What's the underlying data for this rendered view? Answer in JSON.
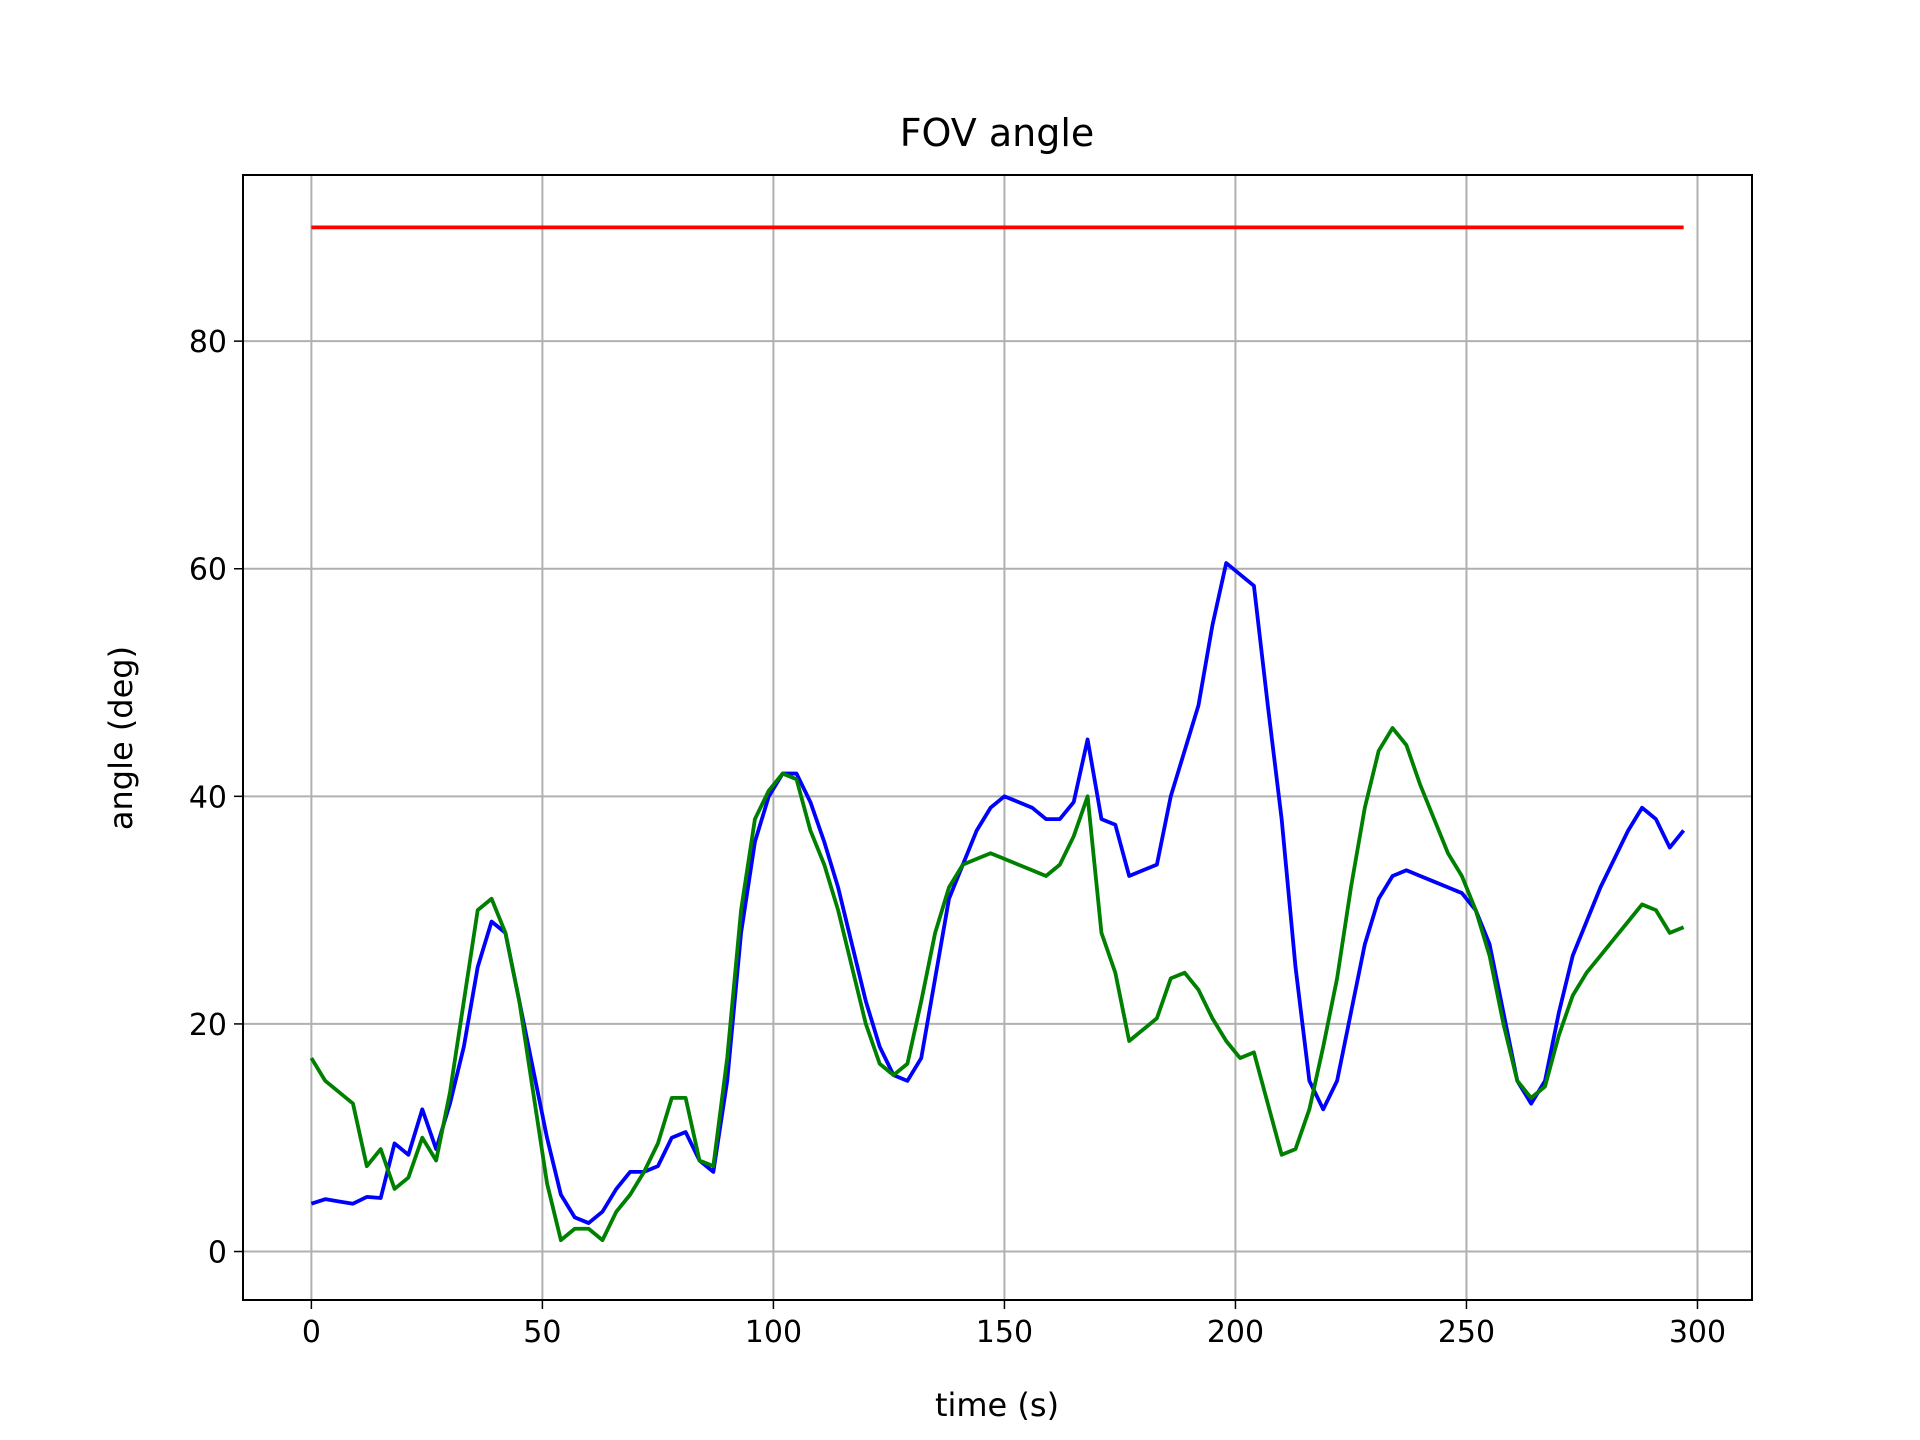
{
  "chart_data": {
    "type": "line",
    "title": "FOV angle",
    "xlabel": "time (s)",
    "ylabel": "angle (deg)",
    "xlim": [
      -14.8,
      311.8
    ],
    "ylim": [
      -4.26,
      94.6
    ],
    "xticks": [
      0,
      50,
      100,
      150,
      200,
      250,
      300
    ],
    "yticks": [
      0,
      20,
      40,
      60,
      80
    ],
    "grid": true,
    "x": [
      0,
      3,
      6,
      9,
      12,
      15,
      18,
      21,
      24,
      27,
      30,
      33,
      36,
      39,
      42,
      45,
      48,
      51,
      54,
      57,
      60,
      63,
      66,
      69,
      72,
      75,
      78,
      81,
      84,
      87,
      90,
      93,
      96,
      99,
      102,
      105,
      108,
      111,
      114,
      117,
      120,
      123,
      126,
      129,
      132,
      135,
      138,
      141,
      144,
      147,
      150,
      153,
      156,
      159,
      162,
      165,
      168,
      171,
      174,
      177,
      180,
      183,
      186,
      189,
      192,
      195,
      198,
      201,
      204,
      207,
      210,
      213,
      216,
      219,
      222,
      225,
      228,
      231,
      234,
      237,
      240,
      243,
      246,
      249,
      252,
      255,
      258,
      261,
      264,
      267,
      270,
      273,
      276,
      279,
      282,
      285,
      288,
      291,
      294,
      297
    ],
    "series": [
      {
        "color": "#ff0000",
        "x": [
          0,
          297
        ],
        "values": [
          90,
          90
        ]
      },
      {
        "color": "#0000ff",
        "values": [
          4.2,
          4.6,
          4.4,
          4.2,
          4.8,
          4.7,
          9.5,
          8.5,
          12.5,
          9,
          13,
          18,
          25,
          29,
          28,
          22,
          16,
          10,
          5,
          3,
          2.5,
          3.5,
          5.5,
          7,
          7,
          7.5,
          10,
          10.5,
          8,
          7,
          15,
          28,
          36,
          40,
          42,
          42,
          39.5,
          36,
          32,
          27,
          22,
          18,
          15.5,
          15,
          17,
          24,
          31,
          34,
          37,
          39,
          40,
          39.5,
          39,
          38,
          38,
          39.5,
          45,
          38,
          37.5,
          33,
          33.5,
          34,
          40,
          44,
          48,
          55,
          60.5,
          59.5,
          58.5,
          48,
          38,
          25,
          15,
          12.5,
          15,
          21,
          27,
          31,
          33,
          33.5,
          33,
          32.5,
          32,
          31.5,
          30,
          27,
          21,
          15,
          13,
          15,
          21,
          26,
          29,
          32,
          34.5,
          37,
          39,
          38,
          35.5,
          37
        ]
      },
      {
        "color": "#008000",
        "values": [
          17,
          15,
          14,
          13,
          7.5,
          9,
          5.5,
          6.5,
          10,
          8,
          14,
          22,
          30,
          31,
          28,
          22,
          14,
          6,
          1,
          2,
          2,
          1,
          3.5,
          5,
          7,
          9.5,
          13.5,
          13.5,
          8,
          7.5,
          17,
          30,
          38,
          40.5,
          42,
          41.5,
          37,
          34,
          30,
          25,
          20,
          16.5,
          15.5,
          16.5,
          22,
          28,
          32,
          34,
          34.5,
          35,
          34.5,
          34,
          33.5,
          33,
          34,
          36.5,
          40,
          28,
          24.5,
          18.5,
          19.5,
          20.5,
          24,
          24.5,
          23,
          20.5,
          18.5,
          17,
          17.5,
          13,
          8.5,
          9,
          12.5,
          18,
          24,
          32,
          39,
          44,
          46,
          44.5,
          41,
          38,
          35,
          33,
          30,
          26,
          20,
          15,
          13.5,
          14.5,
          19,
          22.5,
          24.5,
          26,
          27.5,
          29,
          30.5,
          30,
          28,
          28.5
        ]
      }
    ]
  }
}
